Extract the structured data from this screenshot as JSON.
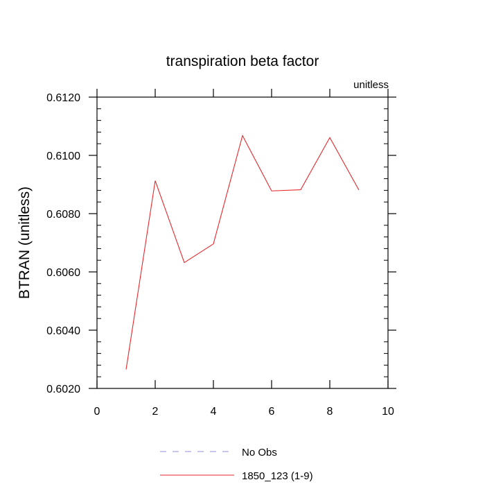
{
  "chart_data": {
    "type": "line",
    "title": "transpiration beta factor",
    "subtitle_right": "unitless",
    "xlabel": "",
    "ylabel": "BTRAN  (unitless)",
    "xlim": [
      0,
      10
    ],
    "ylim": [
      0.602,
      0.612
    ],
    "x_ticks": [
      0,
      2,
      4,
      6,
      8,
      10
    ],
    "x_tick_labels": [
      "0",
      "2",
      "4",
      "6",
      "8",
      "10"
    ],
    "y_ticks": [
      0.602,
      0.604,
      0.606,
      0.608,
      0.61,
      0.612
    ],
    "y_tick_labels": [
      "0.6020",
      "0.6040",
      "0.6060",
      "0.6080",
      "0.6100",
      "0.6120"
    ],
    "grid": false,
    "legend_position": "bottom",
    "series": [
      {
        "name": "1850_123 (1-9)",
        "color": "#e8262a",
        "dash": "solid",
        "x": [
          1,
          2,
          3,
          4,
          5,
          6,
          7,
          8,
          9
        ],
        "y": [
          0.60265,
          0.60913,
          0.60632,
          0.60696,
          0.61068,
          0.60878,
          0.60882,
          0.61061,
          0.60881
        ]
      },
      {
        "name": "No Obs",
        "color": "#8c8ce0",
        "dash": "dashed",
        "x": [],
        "y": []
      }
    ]
  }
}
